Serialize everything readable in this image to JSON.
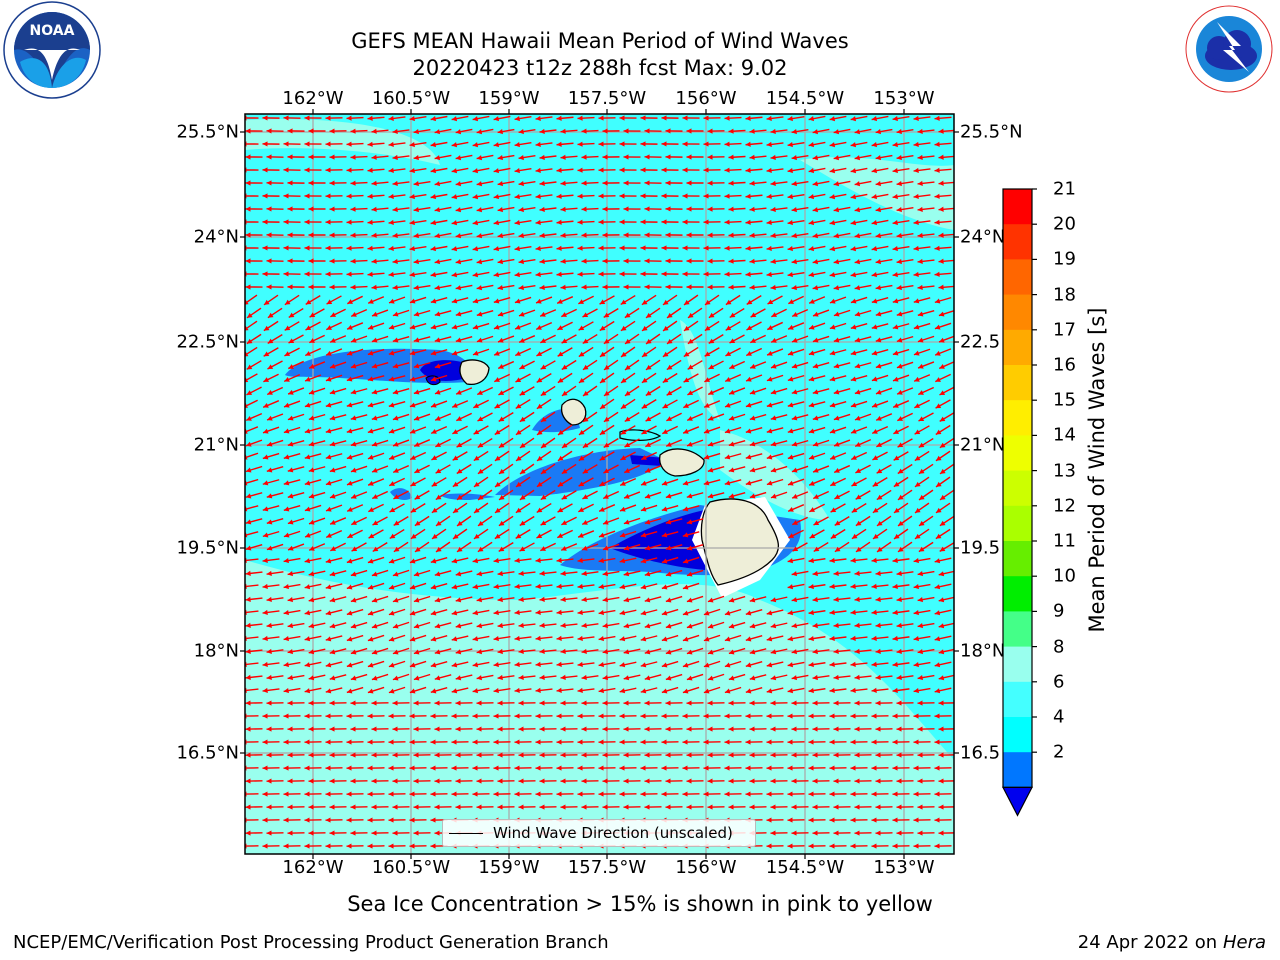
{
  "title": {
    "line1": "GEFS MEAN Hawaii Mean Period of Wind Waves",
    "line2": "20220423 t12z 288h fcst   Max: 9.02"
  },
  "logos": {
    "noaa_text": "NOAA",
    "noaa_ring": "NATIONAL OCEANIC AND ATMOSPHERIC ADMINISTRATION",
    "noaa_bottom": "U.S. DEPARTMENT OF COMMERCE",
    "nws_ring": "NATIONAL WEATHER SERVICE"
  },
  "map": {
    "lon_ticks": [
      "162°W",
      "160.5°W",
      "159°W",
      "157.5°W",
      "156°W",
      "154.5°W",
      "153°W"
    ],
    "lat_ticks": [
      "25.5°N",
      "24°N",
      "22.5°N",
      "21°N",
      "19.5°N",
      "18°N",
      "16.5°N"
    ],
    "lat_ticks_right": [
      "25.5°N",
      "24°N",
      "22.5",
      "21°N",
      "19.5",
      "18°N",
      "16.5"
    ],
    "arrow_color": "#ff0000",
    "background_color": "#40ffff"
  },
  "legend": {
    "label": "Wind Wave Direction (unscaled)"
  },
  "colorbar": {
    "label": "Mean Period of Wind Waves [s]",
    "ticks": [
      "21",
      "20",
      "19",
      "18",
      "17",
      "16",
      "15",
      "14",
      "13",
      "12",
      "11",
      "10",
      "9",
      "8",
      "6",
      "4",
      "2"
    ],
    "colors": [
      "#ff0000",
      "#ff3300",
      "#ff6600",
      "#ff8800",
      "#ffaa00",
      "#ffcc00",
      "#ffee00",
      "#eeff00",
      "#ccff00",
      "#aaff00",
      "#66ee00",
      "#00ee00",
      "#44ff88",
      "#99ffee",
      "#44ffff",
      "#00ffff",
      "#0077ff"
    ],
    "under_color": "#0000ee"
  },
  "caption": "Sea Ice Concentration > 15% is shown in pink to yellow",
  "footer": {
    "left": "NCEP/EMC/Verification Post Processing Product Generation Branch",
    "right_date": "24 Apr 2022 on ",
    "right_host": "Hera"
  }
}
